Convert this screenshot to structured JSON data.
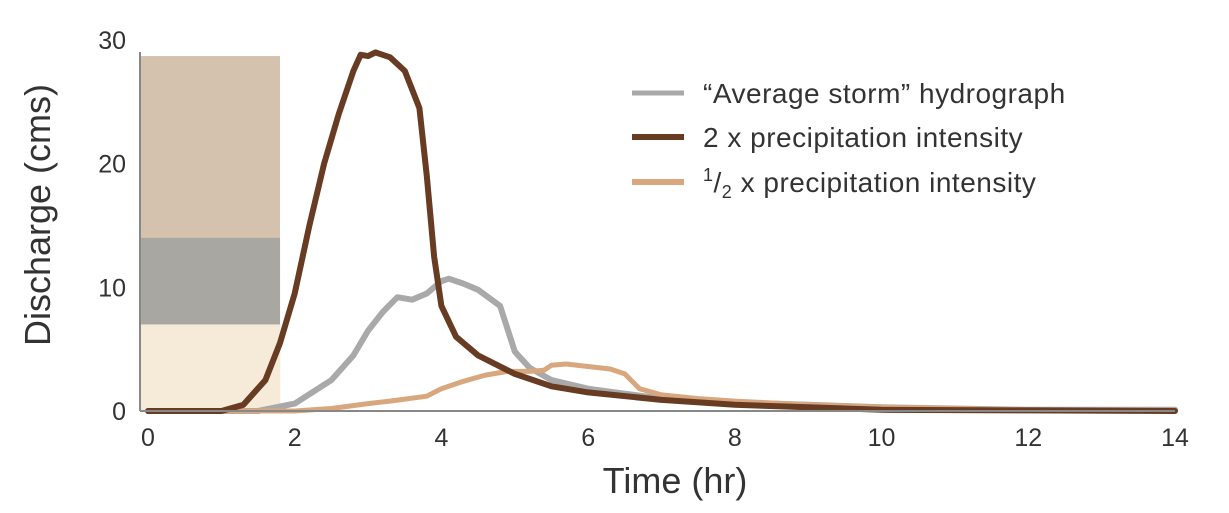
{
  "chart_data": {
    "type": "line",
    "xlabel": "Time (hr)",
    "ylabel": "Discharge (cms)",
    "xlim": [
      0,
      14
    ],
    "ylim": [
      0,
      30
    ],
    "xticks": [
      "0",
      "2",
      "4",
      "6",
      "8",
      "10",
      "12",
      "14"
    ],
    "yticks": [
      "0",
      "10",
      "20",
      "30"
    ],
    "grid": false,
    "legend_position": "top-right",
    "precipitation_bars": [
      {
        "name": "2 x precipitation intensity",
        "x_start": 0,
        "x_end": 1.8,
        "value": 28.7,
        "color": "#d4c2ae"
      },
      {
        "name": "Average storm",
        "x_start": 0,
        "x_end": 1.8,
        "value": 14.0,
        "color": "#a9a7a2"
      },
      {
        "name": "1/2 x precipitation intensity",
        "x_start": 0,
        "x_end": 1.8,
        "value": 7.0,
        "color": "#f6ead9"
      }
    ],
    "series": [
      {
        "name": "“Average storm” hydrograph",
        "color": "#a9a9a9",
        "x": [
          0,
          1.5,
          2.0,
          2.5,
          2.8,
          3.0,
          3.2,
          3.4,
          3.6,
          3.8,
          4.0,
          4.1,
          4.3,
          4.5,
          4.8,
          5.0,
          5.2,
          5.5,
          6.0,
          6.5,
          7.0,
          8.0,
          9.0,
          10.0,
          12.0,
          14.0
        ],
        "values": [
          0,
          0,
          0.6,
          2.5,
          4.5,
          6.5,
          8.0,
          9.2,
          9.0,
          9.5,
          10.5,
          10.7,
          10.3,
          9.8,
          8.5,
          4.8,
          3.5,
          2.5,
          1.8,
          1.4,
          1.0,
          0.7,
          0.5,
          0.3,
          0.1,
          0.1
        ]
      },
      {
        "name": "2 x precipitation intensity",
        "color": "#683b23",
        "x": [
          0,
          1.0,
          1.3,
          1.6,
          1.8,
          2.0,
          2.2,
          2.4,
          2.6,
          2.8,
          2.9,
          3.0,
          3.1,
          3.3,
          3.5,
          3.7,
          3.8,
          3.9,
          4.0,
          4.2,
          4.5,
          5.0,
          5.5,
          6.0,
          7.0,
          8.0,
          9.0,
          10.0,
          12.0,
          14.0
        ],
        "values": [
          0,
          0,
          0.5,
          2.5,
          5.5,
          9.5,
          15,
          20,
          24,
          27.5,
          28.8,
          28.7,
          29.0,
          28.6,
          27.5,
          24.5,
          19.0,
          12.5,
          8.5,
          6.0,
          4.5,
          3.0,
          2.0,
          1.5,
          0.9,
          0.5,
          0.3,
          0.1,
          0.05,
          0
        ]
      },
      {
        "name": "1/2 x precipitation intensity",
        "color": "#d8a77d",
        "x": [
          0,
          2.0,
          2.5,
          3.0,
          3.3,
          3.8,
          4.0,
          4.3,
          4.6,
          4.9,
          5.2,
          5.4,
          5.5,
          5.7,
          6.0,
          6.3,
          6.5,
          6.7,
          7.0,
          7.5,
          8.0,
          9.0,
          10.0,
          12.0,
          14.0
        ],
        "values": [
          0,
          0,
          0.2,
          0.6,
          0.8,
          1.2,
          1.8,
          2.4,
          2.9,
          3.2,
          3.2,
          3.3,
          3.7,
          3.8,
          3.6,
          3.4,
          3.0,
          1.8,
          1.3,
          1.0,
          0.8,
          0.5,
          0.3,
          0.1,
          0.05
        ]
      }
    ],
    "legend": {
      "average_label": "“Average storm” hydrograph",
      "double_label": "2 x precipitation intensity",
      "half_sup": "1",
      "half_sub": "2",
      "half_rest": " x precipitation intensity"
    }
  }
}
